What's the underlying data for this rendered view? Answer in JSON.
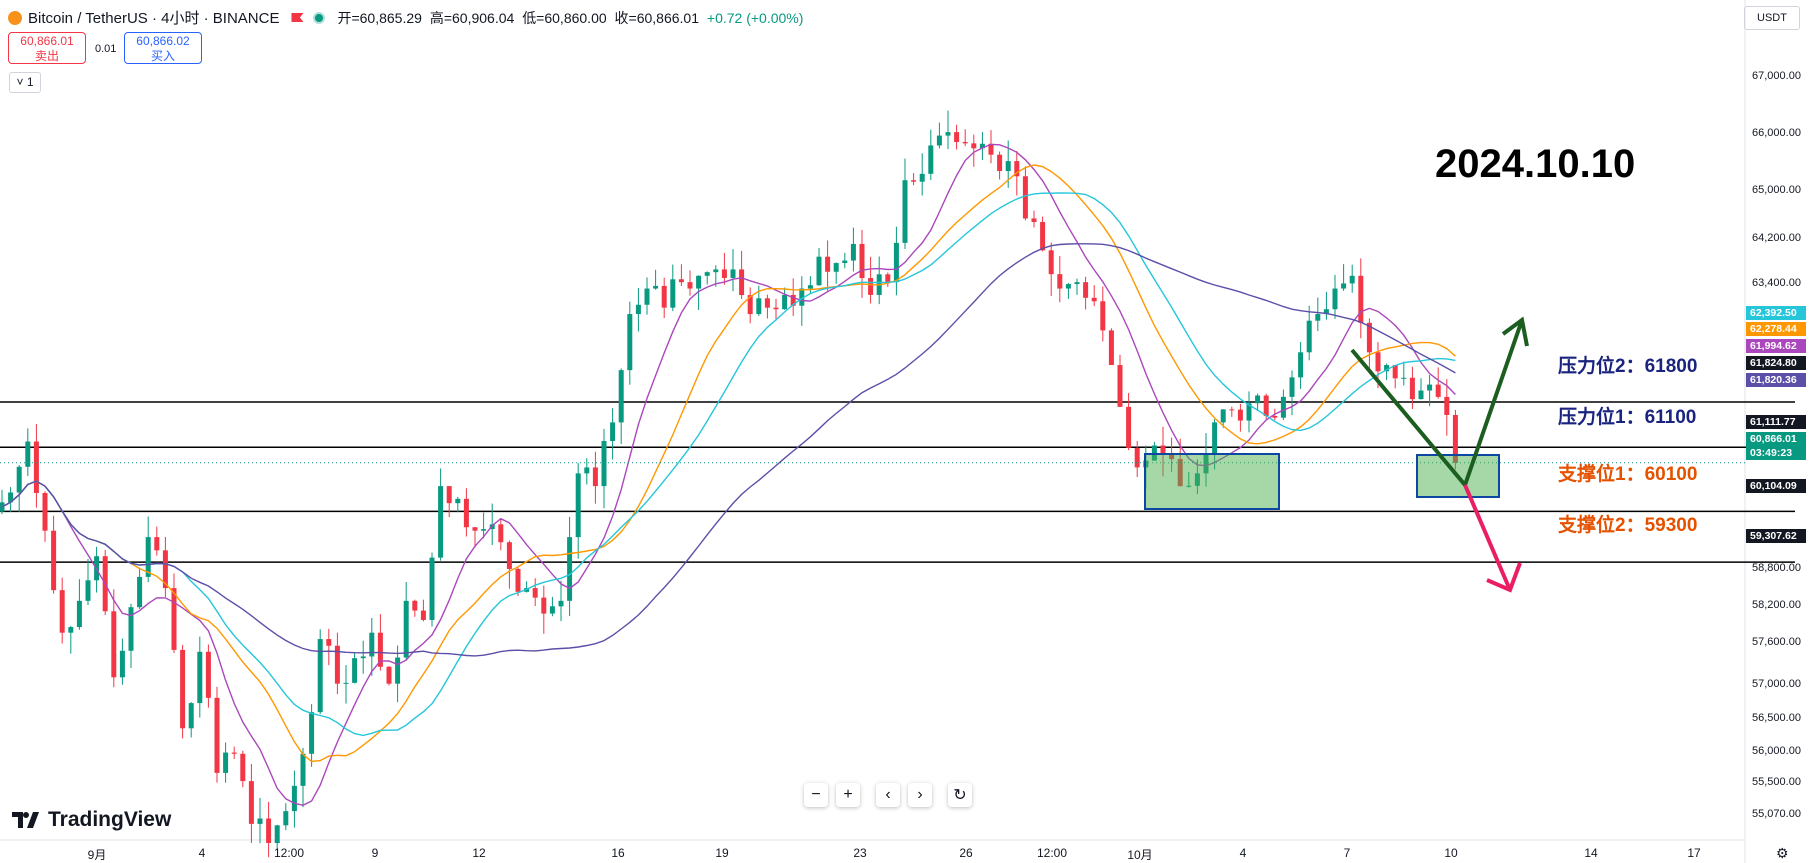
{
  "header": {
    "symbol": "Bitcoin / TetherUS · 4小时 · BINANCE",
    "open": "开=60,865.29",
    "high": "高=60,906.04",
    "low": "低=60,860.00",
    "close": "收=60,866.01",
    "change": "+0.72 (+0.00%)"
  },
  "trade": {
    "sell_price": "60,866.01",
    "sell_label": "卖出",
    "spread": "0.01",
    "buy_price": "60,866.02",
    "buy_label": "买入"
  },
  "timeframe_chip": "1",
  "currency": "USDT",
  "annotation_date": "2024.10.10",
  "levels": [
    {
      "label": "压力位2：61800",
      "kind": "resistance"
    },
    {
      "label": "压力位1：61100",
      "kind": "resistance"
    },
    {
      "label": "支撑位1：60100",
      "kind": "support"
    },
    {
      "label": "支撑位2：59300",
      "kind": "support"
    }
  ],
  "price_labels": [
    {
      "text": "62,392.50",
      "color": "#26c6da"
    },
    {
      "text": "62,278.44",
      "color": "#ff9800"
    },
    {
      "text": "61,994.62",
      "color": "#ab47bc"
    },
    {
      "text": "61,824.80",
      "color": "#131722"
    },
    {
      "text": "61,820.36",
      "color": "#5c4fa8"
    },
    {
      "text": "61,111.77",
      "color": "#131722"
    },
    {
      "text": "60,866.01",
      "color": "#089981"
    },
    {
      "text": "03:49:23",
      "color": "#089981"
    },
    {
      "text": "60,104.09",
      "color": "#131722"
    },
    {
      "text": "59,307.62",
      "color": "#131722"
    }
  ],
  "y_axis": [
    "67,000.00",
    "66,000.00",
    "65,000.00",
    "64,200.00",
    "63,400.00",
    "58,800.00",
    "58,200.00",
    "57,600.00",
    "57,000.00",
    "56,500.00",
    "56,000.00",
    "55,500.00",
    "55,070.00"
  ],
  "x_axis": [
    "9月",
    "4",
    "12:00",
    "9",
    "12",
    "16",
    "19",
    "23",
    "26",
    "12:00",
    "10月",
    "4",
    "7",
    "10",
    "14",
    "17"
  ],
  "toolbar": {
    "zoom_out": "−",
    "zoom_in": "+",
    "scroll_left": "‹",
    "scroll_right": "›",
    "reset": "↻"
  },
  "brand": "TradingView",
  "chart_data": {
    "type": "candlestick",
    "ylim": [
      54900,
      67500
    ],
    "horizontal_lines": [
      61820,
      61110,
      60104,
      59307
    ],
    "ma_colors": {
      "fast": "#ab47bc",
      "mid": "#ff9800",
      "slow": "#26c6da",
      "long": "#5c4fa8"
    },
    "close_path": [
      60400,
      61200,
      59800,
      58200,
      58700,
      59400,
      57500,
      58600,
      59700,
      58900,
      56700,
      57900,
      56000,
      56300,
      55200,
      54900,
      55400,
      56300,
      58100,
      57400,
      57800,
      58200,
      57400,
      58700,
      58400,
      60500,
      60300,
      59800,
      59900,
      59200,
      58900,
      58500,
      58700,
      60700,
      60500,
      61500,
      63200,
      63600,
      63300,
      63700,
      63800,
      63900,
      63900,
      63200,
      63300,
      63500,
      63600,
      64100,
      64000,
      64300,
      63500,
      63700,
      65300,
      65400,
      66000,
      65900,
      65800,
      65700,
      65600,
      64700,
      64200,
      63600,
      63700,
      63400,
      62400,
      61100,
      60900,
      61000,
      60500,
      60700,
      61500,
      61700,
      61800,
      61600,
      61900,
      62600,
      63200,
      63600,
      63800,
      62600,
      62400,
      62200,
      62000,
      61900,
      60866
    ]
  }
}
